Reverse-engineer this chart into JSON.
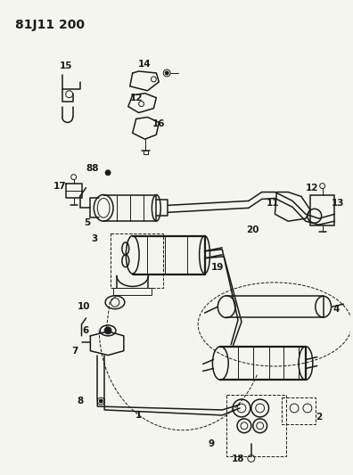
{
  "title": "81J11 200",
  "bg": "#f5f5f0",
  "lc": "#1a1a1a",
  "title_fontsize": 10,
  "label_fontsize": 7.5
}
